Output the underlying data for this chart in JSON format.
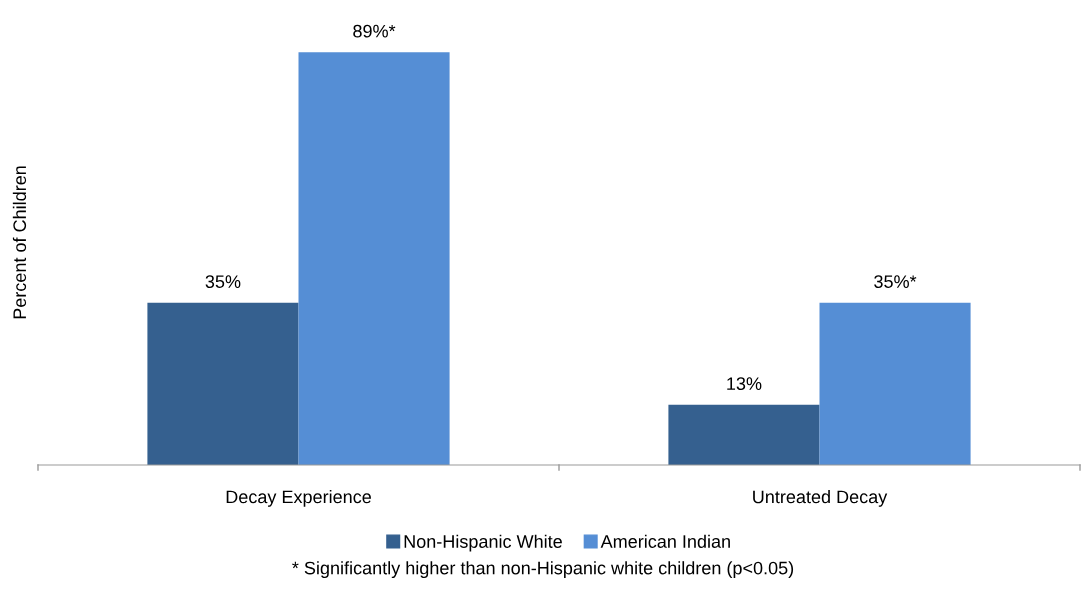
{
  "chart_data": {
    "type": "bar",
    "ylabel": "Percent of Children",
    "categories": [
      "Decay Experience",
      "Untreated Decay"
    ],
    "series": [
      {
        "name": "Non-Hispanic White",
        "color": "#35608f",
        "values": [
          35,
          13
        ],
        "value_labels": [
          "35%",
          "13%"
        ]
      },
      {
        "name": "American Indian",
        "color": "#558ed5",
        "values": [
          89,
          35
        ],
        "value_labels": [
          "89%*",
          "35%*"
        ]
      }
    ],
    "grid": false,
    "legend": "bottom",
    "annotations": [
      "* Significantly higher than non-Hispanic white children (p<0.05)"
    ]
  }
}
